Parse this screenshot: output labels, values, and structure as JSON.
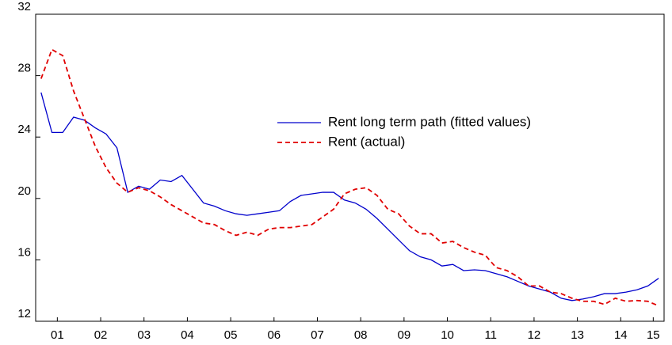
{
  "chart_data": {
    "type": "line",
    "categories": [
      null,
      "01",
      null,
      null,
      null,
      "02",
      null,
      null,
      null,
      "03",
      null,
      null,
      null,
      "04",
      null,
      null,
      null,
      "05",
      null,
      null,
      null,
      "06",
      null,
      null,
      null,
      "07",
      null,
      null,
      null,
      "08",
      null,
      null,
      null,
      "09",
      null,
      null,
      null,
      "10",
      null,
      null,
      null,
      "11",
      null,
      null,
      null,
      "12",
      null,
      null,
      null,
      "13",
      null,
      null,
      null,
      "14",
      null,
      null,
      "15",
      null
    ],
    "series": [
      {
        "name": "Rent long term path (fitted values)",
        "color": "#0000cc",
        "dash": "solid",
        "values": [
          26.9,
          24.3,
          24.3,
          25.3,
          25.1,
          24.6,
          24.2,
          23.3,
          20.4,
          20.8,
          20.6,
          21.2,
          21.1,
          21.5,
          20.6,
          19.7,
          19.5,
          19.2,
          19.0,
          18.9,
          19.0,
          19.1,
          19.2,
          19.8,
          20.2,
          20.3,
          20.4,
          20.4,
          19.9,
          19.7,
          19.3,
          18.7,
          18.0,
          17.3,
          16.6,
          16.2,
          16.0,
          15.6,
          15.7,
          15.3,
          15.35,
          15.3,
          15.1,
          14.9,
          14.6,
          14.3,
          14.1,
          13.9,
          13.5,
          13.35,
          13.45,
          13.6,
          13.8,
          13.8,
          13.9,
          14.05,
          14.3,
          14.8
        ]
      },
      {
        "name": "Rent (actual)",
        "color": "#e00000",
        "dash": "dashed",
        "values": [
          27.8,
          29.7,
          29.3,
          27.0,
          25.2,
          23.4,
          22.0,
          21.0,
          20.4,
          20.7,
          20.5,
          20.1,
          19.6,
          19.2,
          18.8,
          18.4,
          18.3,
          17.9,
          17.6,
          17.8,
          17.6,
          18.0,
          18.1,
          18.1,
          18.2,
          18.3,
          18.8,
          19.3,
          20.3,
          20.6,
          20.7,
          20.2,
          19.3,
          19.0,
          18.2,
          17.7,
          17.7,
          17.1,
          17.2,
          16.8,
          16.5,
          16.3,
          15.5,
          15.3,
          14.9,
          14.3,
          14.3,
          13.9,
          13.8,
          13.5,
          13.3,
          13.3,
          13.1,
          13.5,
          13.3,
          13.35,
          13.3,
          13.0
        ]
      }
    ],
    "ylim": [
      12,
      32
    ],
    "yticks": [
      12,
      16,
      20,
      24,
      28,
      32
    ],
    "grid": false,
    "legend_position": "upper right"
  }
}
